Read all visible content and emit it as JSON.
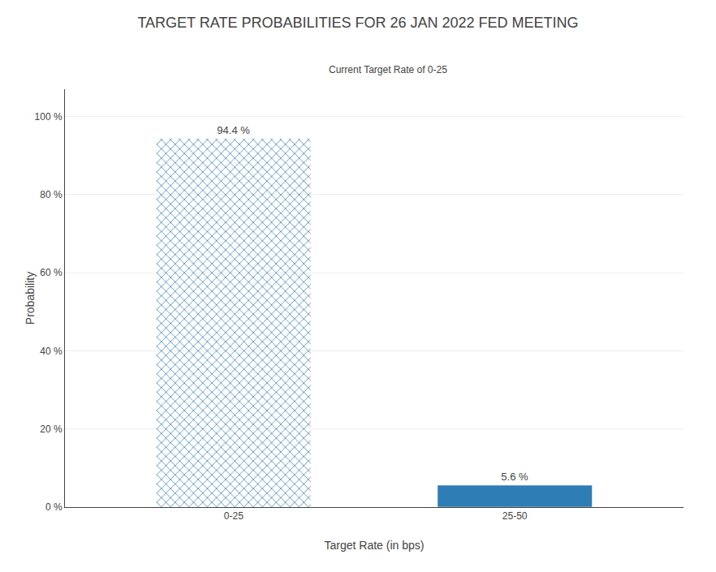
{
  "chart_data": {
    "type": "bar",
    "title": "TARGET RATE PROBABILITIES FOR 26 JAN 2022 FED MEETING",
    "categories": [
      "0-25",
      "25-50"
    ],
    "series": [
      {
        "name": "Current Target Rate of 0-25",
        "colors": [
          "#4a90c4",
          "#2e7db5"
        ],
        "values": [
          94.4,
          5.6
        ],
        "value_labels": [
          "94.4 %",
          "5.6 %"
        ]
      }
    ],
    "data_labels": true,
    "xlabel": "Target Rate (in bps)",
    "ylabel": "Probability",
    "ylim": [
      0,
      107
    ],
    "yticks": [
      {
        "value": 0,
        "label": "0 %"
      },
      {
        "value": 20,
        "label": "20 %"
      },
      {
        "value": 40,
        "label": "40 %"
      },
      {
        "value": 60,
        "label": "60 %"
      },
      {
        "value": 80,
        "label": "80 %"
      },
      {
        "value": 100,
        "label": "100 %"
      }
    ],
    "grid": true,
    "legend": "top"
  }
}
